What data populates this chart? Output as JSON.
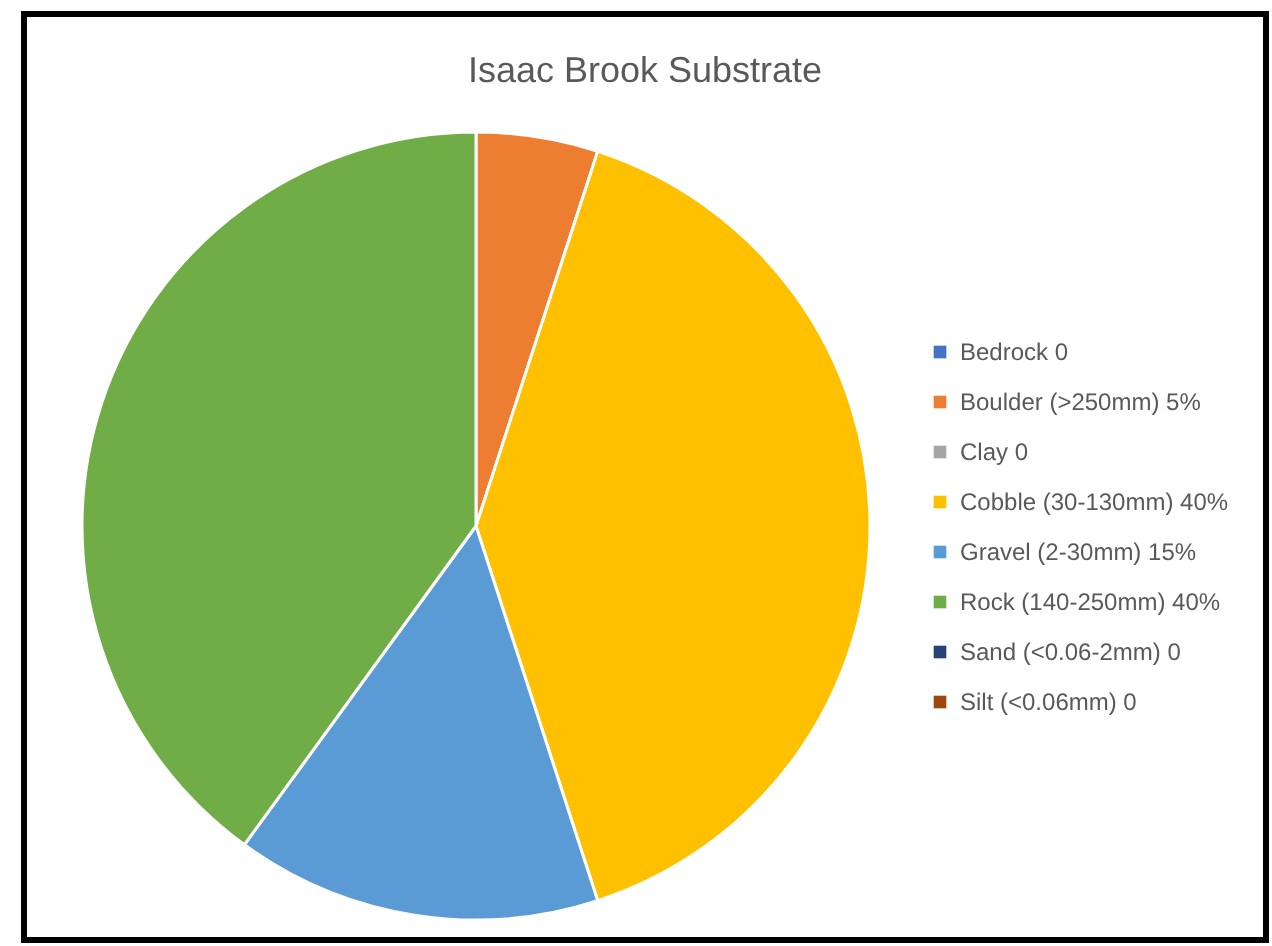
{
  "chart_data": {
    "type": "pie",
    "title": "Isaac Brook Substrate",
    "categories": [
      "Bedrock 0",
      "Boulder (>250mm) 5%",
      "Clay 0",
      "Cobble (30-130mm) 40%",
      "Gravel (2-30mm) 15%",
      "Rock (140-250mm) 40%",
      "Sand (<0.06-2mm) 0",
      "Silt (<0.06mm) 0"
    ],
    "values": [
      0,
      5,
      0,
      40,
      15,
      40,
      0,
      0
    ],
    "colors": [
      "#4472c4",
      "#ed7d31",
      "#a5a5a5",
      "#ffc000",
      "#5b9bd5",
      "#70ad47",
      "#264478",
      "#9e480e"
    ],
    "legend": "right"
  }
}
